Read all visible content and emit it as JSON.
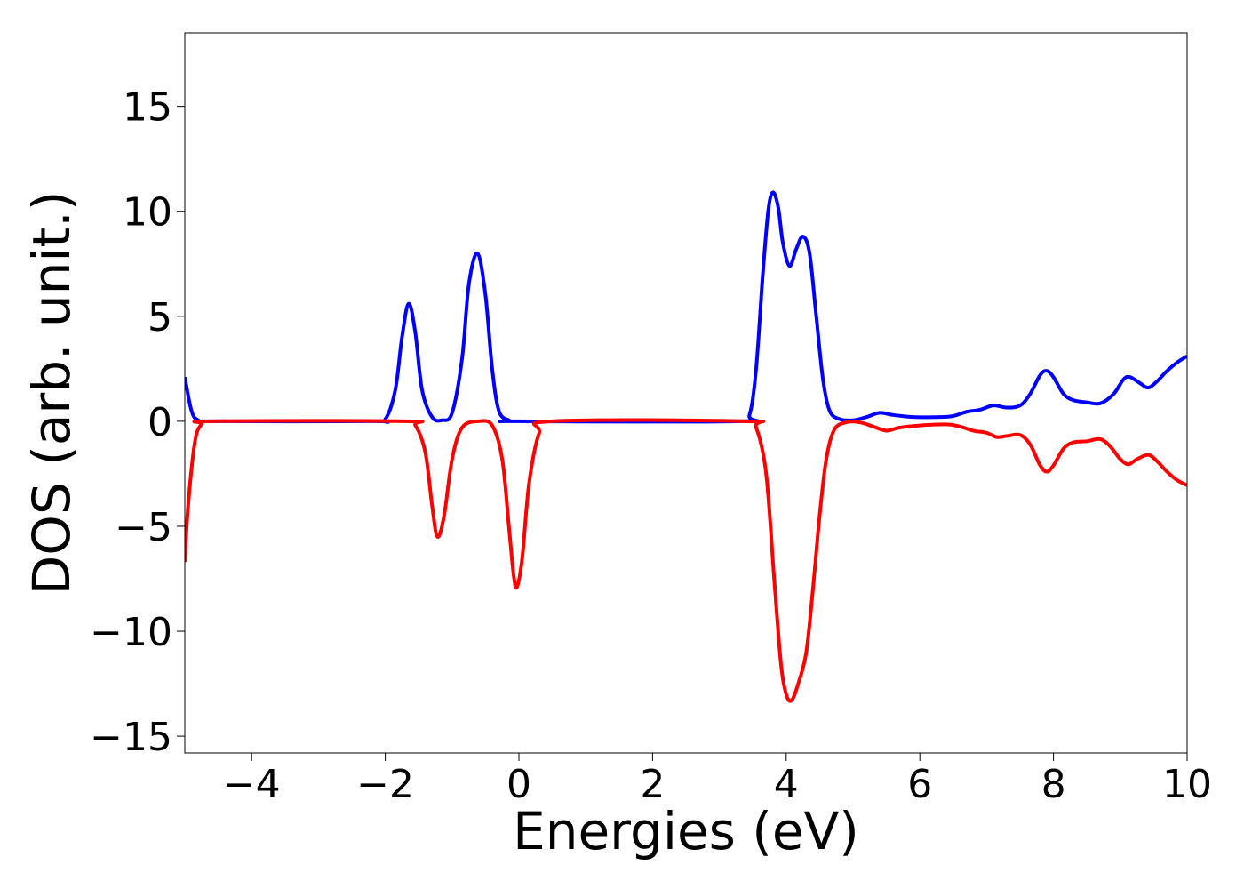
{
  "chart_data": {
    "type": "line",
    "title": "",
    "xlabel": "Energies (eV)",
    "ylabel": "DOS (arb. unit.)",
    "xlim": [
      -5,
      10
    ],
    "ylim": [
      -15.8,
      18.5
    ],
    "grid": false,
    "x_ticks": [
      -4,
      -2,
      0,
      2,
      4,
      6,
      8,
      10
    ],
    "y_ticks": [
      -15,
      -10,
      -5,
      0,
      5,
      10,
      15
    ],
    "x_tick_labels": [
      "−4",
      "−2",
      "0",
      "2",
      "4",
      "6",
      "8",
      "10"
    ],
    "y_tick_labels": [
      "−15",
      "−10",
      "−5",
      "0",
      "5",
      "10",
      "15"
    ],
    "series": [
      {
        "color": "#0000ff",
        "points": [
          [
            -5.0,
            2.1
          ],
          [
            -4.9,
            0.5
          ],
          [
            -4.8,
            0.05
          ],
          [
            -4.6,
            0.0
          ],
          [
            -2.2,
            0.0
          ],
          [
            -2.0,
            0.1
          ],
          [
            -1.85,
            1.5
          ],
          [
            -1.75,
            4.0
          ],
          [
            -1.65,
            5.6
          ],
          [
            -1.55,
            4.2
          ],
          [
            -1.45,
            1.5
          ],
          [
            -1.3,
            0.2
          ],
          [
            -1.15,
            0.05
          ],
          [
            -1.0,
            0.4
          ],
          [
            -0.85,
            3.0
          ],
          [
            -0.75,
            6.5
          ],
          [
            -0.62,
            8.0
          ],
          [
            -0.5,
            6.0
          ],
          [
            -0.4,
            2.5
          ],
          [
            -0.3,
            0.5
          ],
          [
            -0.15,
            0.05
          ],
          [
            0.0,
            0.0
          ],
          [
            3.3,
            0.0
          ],
          [
            3.45,
            0.3
          ],
          [
            3.55,
            2.5
          ],
          [
            3.65,
            7.0
          ],
          [
            3.73,
            10.0
          ],
          [
            3.8,
            10.9
          ],
          [
            3.88,
            10.2
          ],
          [
            3.95,
            8.5
          ],
          [
            4.05,
            7.4
          ],
          [
            4.15,
            8.2
          ],
          [
            4.25,
            8.8
          ],
          [
            4.35,
            8.0
          ],
          [
            4.45,
            5.0
          ],
          [
            4.55,
            2.0
          ],
          [
            4.65,
            0.5
          ],
          [
            4.8,
            0.1
          ],
          [
            5.0,
            0.05
          ],
          [
            5.2,
            0.2
          ],
          [
            5.4,
            0.4
          ],
          [
            5.6,
            0.3
          ],
          [
            5.9,
            0.2
          ],
          [
            6.3,
            0.2
          ],
          [
            6.5,
            0.25
          ],
          [
            6.7,
            0.45
          ],
          [
            6.9,
            0.55
          ],
          [
            7.1,
            0.75
          ],
          [
            7.3,
            0.65
          ],
          [
            7.5,
            0.75
          ],
          [
            7.65,
            1.3
          ],
          [
            7.8,
            2.2
          ],
          [
            7.9,
            2.4
          ],
          [
            8.0,
            2.1
          ],
          [
            8.15,
            1.3
          ],
          [
            8.3,
            1.0
          ],
          [
            8.5,
            0.9
          ],
          [
            8.7,
            0.85
          ],
          [
            8.9,
            1.3
          ],
          [
            9.05,
            2.0
          ],
          [
            9.15,
            2.1
          ],
          [
            9.3,
            1.8
          ],
          [
            9.42,
            1.6
          ],
          [
            9.55,
            1.9
          ],
          [
            9.7,
            2.4
          ],
          [
            9.85,
            2.8
          ],
          [
            10.0,
            3.1
          ]
        ]
      },
      {
        "color": "#ff0000",
        "points": [
          [
            -5.0,
            -6.7
          ],
          [
            -4.95,
            -4.0
          ],
          [
            -4.85,
            -1.0
          ],
          [
            -4.75,
            -0.15
          ],
          [
            -4.6,
            0.0
          ],
          [
            -1.7,
            0.0
          ],
          [
            -1.55,
            -0.2
          ],
          [
            -1.4,
            -1.5
          ],
          [
            -1.3,
            -4.0
          ],
          [
            -1.22,
            -5.5
          ],
          [
            -1.12,
            -4.5
          ],
          [
            -1.0,
            -1.8
          ],
          [
            -0.85,
            -0.3
          ],
          [
            -0.6,
            0.0
          ],
          [
            -0.4,
            -0.2
          ],
          [
            -0.25,
            -1.8
          ],
          [
            -0.15,
            -5.0
          ],
          [
            -0.08,
            -7.3
          ],
          [
            -0.03,
            -7.9
          ],
          [
            0.05,
            -6.5
          ],
          [
            0.15,
            -3.0
          ],
          [
            0.3,
            -0.6
          ],
          [
            0.5,
            0.0
          ],
          [
            3.4,
            0.0
          ],
          [
            3.55,
            -0.3
          ],
          [
            3.7,
            -2.5
          ],
          [
            3.82,
            -7.5
          ],
          [
            3.92,
            -11.5
          ],
          [
            4.0,
            -13.0
          ],
          [
            4.08,
            -13.3
          ],
          [
            4.18,
            -12.5
          ],
          [
            4.3,
            -11.0
          ],
          [
            4.4,
            -8.0
          ],
          [
            4.5,
            -4.5
          ],
          [
            4.6,
            -1.8
          ],
          [
            4.72,
            -0.4
          ],
          [
            4.9,
            -0.05
          ],
          [
            5.1,
            -0.05
          ],
          [
            5.3,
            -0.25
          ],
          [
            5.5,
            -0.45
          ],
          [
            5.7,
            -0.3
          ],
          [
            6.0,
            -0.2
          ],
          [
            6.4,
            -0.15
          ],
          [
            6.6,
            -0.25
          ],
          [
            6.8,
            -0.45
          ],
          [
            7.0,
            -0.55
          ],
          [
            7.15,
            -0.75
          ],
          [
            7.3,
            -0.7
          ],
          [
            7.5,
            -0.65
          ],
          [
            7.65,
            -1.1
          ],
          [
            7.8,
            -2.1
          ],
          [
            7.9,
            -2.4
          ],
          [
            8.0,
            -2.1
          ],
          [
            8.15,
            -1.3
          ],
          [
            8.3,
            -1.0
          ],
          [
            8.5,
            -0.95
          ],
          [
            8.7,
            -0.85
          ],
          [
            8.85,
            -1.2
          ],
          [
            9.0,
            -1.8
          ],
          [
            9.12,
            -2.05
          ],
          [
            9.25,
            -1.8
          ],
          [
            9.42,
            -1.6
          ],
          [
            9.55,
            -1.9
          ],
          [
            9.7,
            -2.4
          ],
          [
            9.85,
            -2.8
          ],
          [
            10.0,
            -3.05
          ]
        ]
      }
    ]
  }
}
